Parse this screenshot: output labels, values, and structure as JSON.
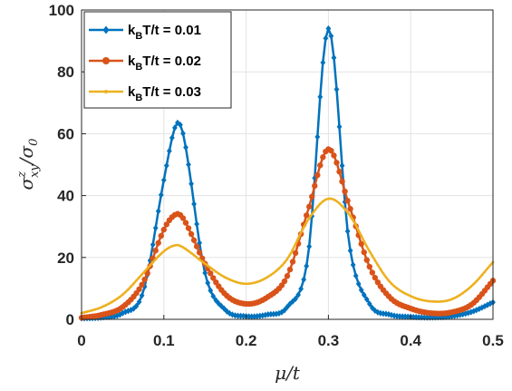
{
  "chart_data": {
    "type": "line",
    "xlabel": "μ/t",
    "ylabel": "σ^z_{xy}/σ_0",
    "xlim": [
      0,
      0.5
    ],
    "ylim": [
      0,
      100
    ],
    "x_ticks": [
      "0",
      "0.1",
      "0.2",
      "0.3",
      "0.4",
      "0.5"
    ],
    "y_ticks": [
      "0",
      "20",
      "40",
      "60",
      "80",
      "100"
    ],
    "grid": true,
    "legend_position": "top-left",
    "x": [
      0,
      0.025,
      0.05,
      0.075,
      0.1,
      0.115,
      0.125,
      0.15,
      0.175,
      0.2,
      0.225,
      0.25,
      0.275,
      0.3,
      0.325,
      0.35,
      0.375,
      0.4,
      0.425,
      0.45,
      0.475,
      0.5
    ],
    "series": [
      {
        "name": "k_B T/t = 0.01",
        "label_main": "k",
        "label_sub": "B",
        "label_rest": "T/t = 0.01",
        "color": "#0072BD",
        "marker": "diamond",
        "values": [
          0.3,
          0.6,
          2,
          9,
          45,
          63,
          58,
          15,
          3,
          1,
          1.5,
          4,
          20,
          94,
          25,
          5,
          1.5,
          0.8,
          0.6,
          1,
          2.5,
          5.5
        ]
      },
      {
        "name": "k_B T/t = 0.02",
        "label_main": "k",
        "label_sub": "B",
        "label_rest": "T/t = 0.02",
        "color": "#D95319",
        "marker": "circle",
        "values": [
          0.5,
          1.5,
          4,
          12,
          29,
          34,
          32,
          18,
          8,
          5,
          7,
          14,
          35,
          55,
          37,
          17,
          7,
          3.5,
          2,
          2.3,
          5,
          12.5
        ]
      },
      {
        "name": "k_B T/t = 0.03",
        "label_main": "k",
        "label_sub": "B",
        "label_rest": "T/t = 0.03",
        "color": "#EDB120",
        "marker": "point",
        "values": [
          2,
          4,
          8,
          15,
          22,
          24,
          23,
          18,
          13.5,
          11.5,
          13.5,
          19.5,
          32,
          39,
          34,
          22,
          12,
          7.5,
          5.8,
          6.5,
          11,
          18.5
        ]
      }
    ]
  }
}
